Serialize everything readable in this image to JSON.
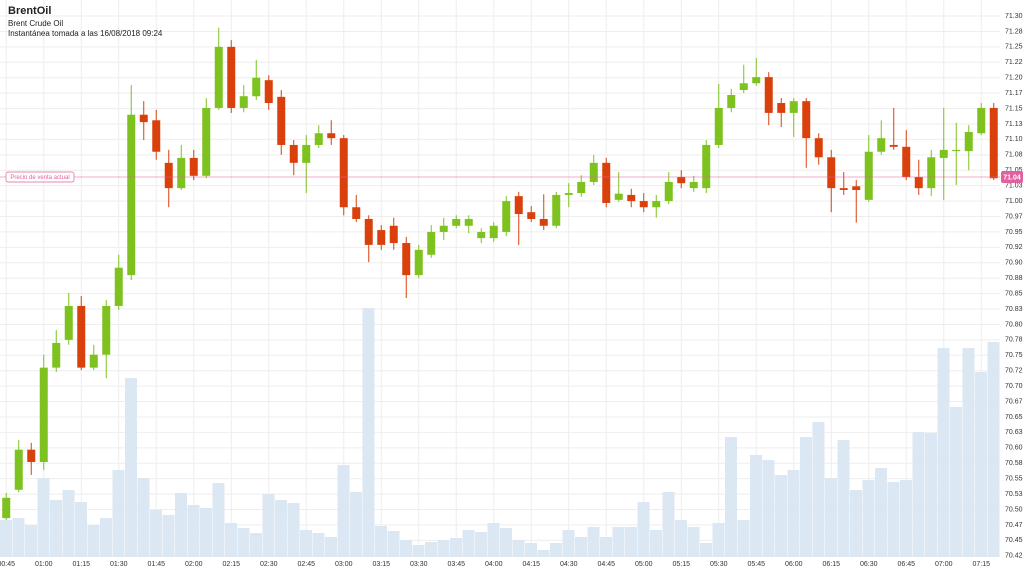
{
  "chart_data": {
    "type": "candlestick",
    "title": "BrentOil",
    "subtitle": "Brent Crude Oil",
    "annotation": "Instantánea tomada a las 16/08/2018 09:24",
    "categories": [
      "00:45",
      null,
      null,
      "01:00",
      null,
      null,
      "01:15",
      null,
      null,
      "01:30",
      null,
      null,
      "01:45",
      null,
      null,
      "02:00",
      null,
      null,
      "02:15",
      null,
      null,
      "02:30",
      null,
      null,
      "02:45",
      null,
      null,
      "03:00",
      null,
      null,
      "03:15",
      null,
      null,
      "03:30",
      null,
      null,
      "03:45",
      null,
      null,
      "04:00",
      null,
      null,
      "04:15",
      null,
      null,
      "04:30",
      null,
      null,
      "04:45",
      null,
      null,
      "05:00",
      null,
      null,
      "05:15",
      null,
      null,
      "05:30",
      null,
      null,
      "05:45",
      null,
      null,
      "06:00",
      null,
      null,
      "06:15",
      null,
      null,
      "06:30",
      null,
      null,
      "06:45",
      null,
      null,
      "07:00",
      null,
      null,
      "07:15",
      null
    ],
    "open": [
      70.486,
      70.532,
      70.597,
      70.577,
      70.73,
      70.775,
      70.83,
      70.73,
      70.751,
      70.83,
      70.88,
      71.14,
      71.131,
      71.062,
      71.021,
      71.07,
      71.041,
      71.151,
      71.25,
      71.151,
      71.17,
      71.196,
      71.169,
      71.091,
      71.062,
      71.091,
      71.11,
      71.102,
      70.99,
      70.971,
      70.953,
      70.96,
      70.932,
      70.88,
      70.913,
      70.95,
      70.96,
      70.96,
      70.94,
      70.94,
      70.95,
      71.008,
      70.982,
      70.971,
      70.96,
      71.01,
      71.013,
      71.031,
      71.062,
      71.002,
      71.01,
      71.0,
      70.99,
      71.0,
      71.039,
      71.021,
      71.021,
      71.091,
      71.151,
      71.18,
      71.191,
      71.201,
      71.159,
      71.143,
      71.162,
      71.102,
      71.071,
      71.021,
      71.024,
      71.002,
      71.08,
      71.091,
      71.088,
      71.039,
      71.021,
      71.07,
      71.081,
      71.081,
      71.11,
      71.151
    ],
    "high": [
      70.527,
      70.613,
      70.608,
      70.751,
      70.791,
      70.851,
      70.846,
      70.767,
      70.84,
      70.913,
      71.188,
      71.162,
      71.148,
      71.083,
      71.091,
      71.083,
      71.167,
      71.281,
      71.261,
      71.188,
      71.229,
      71.204,
      71.18,
      71.099,
      71.107,
      71.123,
      71.131,
      71.107,
      71.01,
      70.977,
      70.961,
      70.973,
      70.942,
      70.929,
      70.961,
      70.973,
      70.977,
      70.977,
      70.956,
      70.966,
      71.008,
      71.015,
      70.992,
      71.011,
      71.015,
      71.029,
      71.042,
      71.075,
      71.07,
      71.047,
      71.02,
      71.013,
      71.01,
      71.047,
      71.05,
      71.041,
      71.099,
      71.19,
      71.182,
      71.221,
      71.232,
      71.209,
      71.167,
      71.167,
      71.167,
      71.11,
      71.083,
      71.047,
      71.034,
      71.107,
      71.131,
      71.151,
      71.115,
      71.067,
      71.083,
      71.151,
      71.127,
      71.123,
      71.159,
      71.159
    ],
    "low": [
      70.483,
      70.528,
      70.556,
      70.564,
      70.723,
      70.767,
      70.726,
      70.726,
      70.713,
      70.824,
      70.872,
      71.099,
      71.067,
      70.99,
      71.018,
      71.034,
      71.037,
      71.148,
      71.143,
      71.144,
      71.164,
      71.148,
      71.075,
      71.042,
      71.013,
      71.086,
      71.091,
      70.977,
      70.966,
      70.901,
      70.921,
      70.921,
      70.843,
      70.875,
      70.908,
      70.937,
      70.956,
      70.948,
      70.932,
      70.934,
      70.943,
      70.929,
      70.966,
      70.953,
      70.956,
      70.99,
      71.007,
      71.026,
      70.99,
      70.999,
      70.99,
      70.982,
      70.973,
      70.995,
      71.021,
      71.015,
      71.013,
      71.086,
      71.144,
      71.175,
      71.187,
      71.123,
      71.12,
      71.104,
      71.054,
      71.059,
      70.982,
      71.01,
      70.965,
      70.999,
      71.075,
      71.083,
      71.034,
      71.01,
      71.008,
      71.002,
      71.026,
      71.05,
      71.107,
      71.034
    ],
    "close": [
      70.519,
      70.597,
      70.577,
      70.73,
      70.77,
      70.83,
      70.73,
      70.751,
      70.83,
      70.892,
      71.14,
      71.128,
      71.08,
      71.021,
      71.07,
      71.041,
      71.151,
      71.25,
      71.151,
      71.17,
      71.2,
      71.159,
      71.091,
      71.062,
      71.091,
      71.11,
      71.102,
      70.99,
      70.971,
      70.929,
      70.929,
      70.932,
      70.88,
      70.921,
      70.95,
      70.96,
      70.971,
      70.971,
      70.95,
      70.96,
      71.0,
      70.979,
      70.971,
      70.96,
      71.01,
      71.013,
      71.031,
      71.062,
      70.997,
      71.012,
      71.0,
      70.99,
      71.0,
      71.031,
      71.029,
      71.031,
      71.091,
      71.151,
      71.172,
      71.191,
      71.201,
      71.143,
      71.143,
      71.162,
      71.102,
      71.071,
      71.021,
      71.018,
      71.018,
      71.08,
      71.102,
      71.088,
      71.039,
      71.021,
      71.071,
      71.083,
      71.083,
      71.112,
      71.151,
      71.037
    ],
    "volume": [
      37,
      39,
      32,
      79,
      57,
      67,
      55,
      32,
      39,
      87,
      179,
      79,
      47,
      42,
      64,
      52,
      49,
      74,
      34,
      29,
      24,
      63,
      57,
      54,
      27,
      24,
      20,
      92,
      65,
      249,
      31,
      26,
      17,
      12,
      15,
      17,
      19,
      27,
      25,
      34,
      29,
      17,
      14,
      7,
      14,
      27,
      20,
      30,
      20,
      30,
      30,
      55,
      27,
      65,
      37,
      30,
      14,
      34,
      120,
      37,
      102,
      97,
      82,
      87,
      120,
      135,
      79,
      117,
      67,
      77,
      89,
      75,
      77,
      125,
      124,
      209,
      150,
      209,
      185,
      215
    ],
    "up_color": "#7dc21e",
    "down_color": "#d9400c",
    "volume_color": "#dbe7f3",
    "ylim": [
      70.423,
      71.326
    ],
    "y2lim": [
      0,
      557
    ],
    "yticks": [
      {
        "value": 71.3,
        "label": "71.30"
      },
      {
        "value": 71.275,
        "label": "71.28"
      },
      {
        "value": 71.25,
        "label": "71.25"
      },
      {
        "value": 71.225,
        "label": "71.22"
      },
      {
        "value": 71.2,
        "label": "71.20"
      },
      {
        "value": 71.175,
        "label": "71.17"
      },
      {
        "value": 71.15,
        "label": "71.15"
      },
      {
        "value": 71.125,
        "label": "71.13"
      },
      {
        "value": 71.1,
        "label": "71.10"
      },
      {
        "value": 71.075,
        "label": "71.08"
      },
      {
        "value": 71.05,
        "label": "71.05"
      },
      {
        "value": 71.025,
        "label": "71.03"
      },
      {
        "value": 71.0,
        "label": "71.00"
      },
      {
        "value": 70.975,
        "label": "70.97"
      },
      {
        "value": 70.95,
        "label": "70.95"
      },
      {
        "value": 70.925,
        "label": "70.92"
      },
      {
        "value": 70.9,
        "label": "70.90"
      },
      {
        "value": 70.875,
        "label": "70.88"
      },
      {
        "value": 70.85,
        "label": "70.85"
      },
      {
        "value": 70.825,
        "label": "70.83"
      },
      {
        "value": 70.8,
        "label": "70.80"
      },
      {
        "value": 70.775,
        "label": "70.78"
      },
      {
        "value": 70.75,
        "label": "70.75"
      },
      {
        "value": 70.725,
        "label": "70.72"
      },
      {
        "value": 70.7,
        "label": "70.70"
      },
      {
        "value": 70.675,
        "label": "70.67"
      },
      {
        "value": 70.65,
        "label": "70.65"
      },
      {
        "value": 70.625,
        "label": "70.63"
      },
      {
        "value": 70.6,
        "label": "70.60"
      },
      {
        "value": 70.575,
        "label": "70.58"
      },
      {
        "value": 70.55,
        "label": "70.55"
      },
      {
        "value": 70.525,
        "label": "70.53"
      },
      {
        "value": 70.5,
        "label": "70.50"
      },
      {
        "value": 70.475,
        "label": "70.47"
      },
      {
        "value": 70.45,
        "label": "70.45"
      },
      {
        "value": 70.425,
        "label": "70.42"
      }
    ],
    "grid": true,
    "current_price": {
      "label": "Precio de venta actual",
      "value": 71.039,
      "value_label": "71.04",
      "color": "#e2609f"
    }
  }
}
